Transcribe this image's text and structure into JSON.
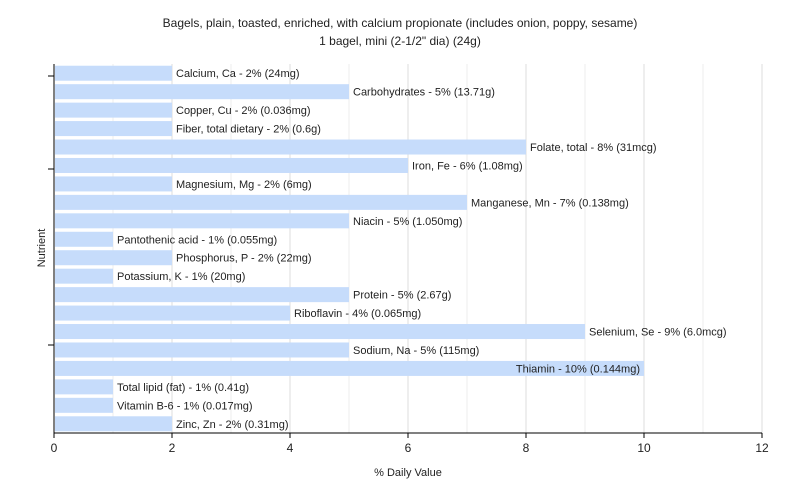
{
  "chart_data": {
    "type": "bar",
    "orientation": "horizontal",
    "title": "Bagels, plain, toasted, enriched, with calcium propionate (includes onion, poppy, sesame)",
    "subtitle": "1 bagel, mini (2-1/2\" dia) (24g)",
    "xlabel": "% Daily Value",
    "ylabel": "Nutrient",
    "xlim": [
      0,
      12
    ],
    "xticks": [
      "0",
      "2",
      "4",
      "6",
      "8",
      "10",
      "12"
    ],
    "grid": true,
    "bar_color": "#c6dcfb",
    "categories": [
      "Calcium, Ca",
      "Carbohydrates",
      "Copper, Cu",
      "Fiber, total dietary",
      "Folate, total",
      "Iron, Fe",
      "Magnesium, Mg",
      "Manganese, Mn",
      "Niacin",
      "Pantothenic acid",
      "Phosphorus, P",
      "Potassium, K",
      "Protein",
      "Riboflavin",
      "Selenium, Se",
      "Sodium, Na",
      "Thiamin",
      "Total lipid (fat)",
      "Vitamin B-6",
      "Zinc, Zn"
    ],
    "values": [
      2,
      5,
      2,
      2,
      8,
      6,
      2,
      7,
      5,
      1,
      2,
      1,
      5,
      4,
      9,
      5,
      10,
      1,
      1,
      2
    ],
    "labels": [
      "Calcium, Ca - 2% (24mg)",
      "Carbohydrates - 5% (13.71g)",
      "Copper, Cu - 2% (0.036mg)",
      "Fiber, total dietary - 2% (0.6g)",
      "Folate, total - 8% (31mcg)",
      "Iron, Fe - 6% (1.08mg)",
      "Magnesium, Mg - 2% (6mg)",
      "Manganese, Mn - 7% (0.138mg)",
      "Niacin - 5% (1.050mg)",
      "Pantothenic acid - 1% (0.055mg)",
      "Phosphorus, P - 2% (22mg)",
      "Potassium, K - 1% (20mg)",
      "Protein - 5% (2.67g)",
      "Riboflavin - 4% (0.065mg)",
      "Selenium, Se - 9% (6.0mcg)",
      "Sodium, Na - 5% (115mg)",
      "Thiamin - 10% (0.144mg)",
      "Total lipid (fat) - 1% (0.41g)",
      "Vitamin B-6 - 1% (0.017mg)",
      "Zinc, Zn - 2% (0.31mg)"
    ]
  }
}
